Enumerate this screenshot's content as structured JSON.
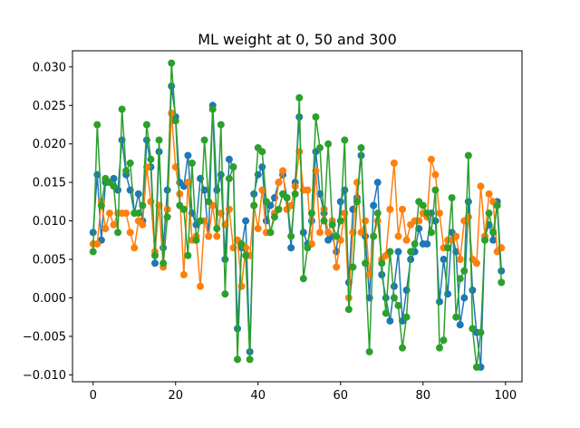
{
  "chart_data": {
    "type": "line",
    "title": "ML weight at 0, 50 and 300",
    "xlabel": "",
    "ylabel": "",
    "xlim": [
      -5,
      104
    ],
    "ylim": [
      -0.0109,
      0.0321
    ],
    "xticks": [
      0,
      20,
      40,
      60,
      80,
      100
    ],
    "yticks": [
      -0.01,
      -0.005,
      0.0,
      0.005,
      0.01,
      0.015,
      0.02,
      0.025,
      0.03
    ],
    "ytick_labels": [
      "−0.010",
      "−0.005",
      "0.000",
      "0.005",
      "0.010",
      "0.015",
      "0.020",
      "0.025",
      "0.030"
    ],
    "grid": false,
    "legend": false,
    "x": [
      0,
      1,
      2,
      3,
      4,
      5,
      6,
      7,
      8,
      9,
      10,
      11,
      12,
      13,
      14,
      15,
      16,
      17,
      18,
      19,
      20,
      21,
      22,
      23,
      24,
      25,
      26,
      27,
      28,
      29,
      30,
      31,
      32,
      33,
      34,
      35,
      36,
      37,
      38,
      39,
      40,
      41,
      42,
      43,
      44,
      45,
      46,
      47,
      48,
      49,
      50,
      51,
      52,
      53,
      54,
      55,
      56,
      57,
      58,
      59,
      60,
      61,
      62,
      63,
      64,
      65,
      66,
      67,
      68,
      69,
      70,
      71,
      72,
      73,
      74,
      75,
      76,
      77,
      78,
      79,
      80,
      81,
      82,
      83,
      84,
      85,
      86,
      87,
      88,
      89,
      90,
      91,
      92,
      93,
      94,
      95,
      96,
      97,
      98,
      99
    ],
    "series": [
      {
        "color": "#1f77b4",
        "values": [
          0.0085,
          0.016,
          0.0075,
          0.015,
          0.015,
          0.0155,
          0.014,
          0.0205,
          0.016,
          0.014,
          0.011,
          0.0135,
          0.01,
          0.0205,
          0.017,
          0.0045,
          0.019,
          0.0065,
          0.014,
          0.0275,
          0.0235,
          0.015,
          0.0145,
          0.0185,
          0.011,
          0.0095,
          0.0155,
          0.014,
          0.008,
          0.025,
          0.014,
          0.016,
          0.005,
          0.018,
          0.017,
          -0.004,
          0.0065,
          0.01,
          -0.007,
          0.0135,
          0.016,
          0.017,
          0.01,
          0.012,
          0.013,
          0.015,
          0.016,
          0.013,
          0.0065,
          0.015,
          0.0235,
          0.0085,
          0.007,
          0.01,
          0.019,
          0.0135,
          0.011,
          0.0075,
          0.008,
          0.006,
          0.0125,
          0.014,
          0.002,
          0.0115,
          0.013,
          0.0185,
          0.008,
          0.0,
          0.012,
          0.015,
          0.003,
          0.0,
          -0.003,
          0.0015,
          0.006,
          -0.003,
          0.001,
          0.005,
          0.006,
          0.009,
          0.007,
          0.007,
          0.011,
          0.01,
          -0.0005,
          0.005,
          0.0005,
          0.0085,
          0.006,
          -0.0035,
          0.0,
          0.0125,
          0.001,
          -0.0045,
          -0.009,
          0.008,
          0.0095,
          0.0075,
          0.0125,
          0.0035
        ]
      },
      {
        "color": "#ff7f0e",
        "values": [
          0.007,
          0.007,
          0.0125,
          0.009,
          0.011,
          0.0095,
          0.011,
          0.011,
          0.011,
          0.0085,
          0.0065,
          0.01,
          0.0095,
          0.017,
          0.0125,
          0.006,
          0.012,
          0.004,
          0.0115,
          0.024,
          0.017,
          0.0135,
          0.003,
          0.015,
          0.0075,
          0.008,
          0.0015,
          0.01,
          0.008,
          0.012,
          0.008,
          0.011,
          0.0095,
          0.0115,
          0.0065,
          0.0075,
          0.0015,
          0.0065,
          0.0055,
          0.012,
          0.009,
          0.014,
          0.0085,
          0.0085,
          0.011,
          0.015,
          0.0165,
          0.0115,
          0.012,
          0.0145,
          0.019,
          0.014,
          0.014,
          0.007,
          0.0165,
          0.0085,
          0.0115,
          0.0085,
          0.01,
          0.004,
          0.0075,
          0.011,
          0.0,
          0.0085,
          0.015,
          0.0085,
          0.01,
          0.003,
          0.008,
          0.01,
          0.005,
          0.0055,
          0.0115,
          0.0175,
          0.008,
          0.0115,
          0.0075,
          0.0095,
          0.01,
          0.01,
          0.011,
          0.0105,
          0.018,
          0.016,
          0.011,
          0.0065,
          0.0075,
          0.0075,
          0.008,
          0.005,
          0.01,
          0.0105,
          0.005,
          0.0045,
          0.0145,
          0.008,
          0.0135,
          0.0125,
          0.006,
          0.0065
        ]
      },
      {
        "color": "#2ca02c",
        "values": [
          0.006,
          0.0225,
          0.012,
          0.0155,
          0.015,
          0.0145,
          0.0085,
          0.0245,
          0.0165,
          0.0175,
          0.011,
          0.011,
          0.012,
          0.0225,
          0.018,
          0.0055,
          0.0205,
          0.0045,
          0.0105,
          0.0305,
          0.023,
          0.012,
          0.0115,
          0.0055,
          0.0175,
          0.0075,
          0.01,
          0.0205,
          0.0125,
          0.0245,
          0.009,
          0.0225,
          0.0005,
          0.0155,
          0.017,
          -0.008,
          0.007,
          0.0055,
          -0.008,
          0.012,
          0.0195,
          0.019,
          0.0125,
          0.0085,
          0.0105,
          0.0115,
          0.0135,
          0.013,
          0.008,
          0.0135,
          0.026,
          0.0025,
          0.0065,
          0.011,
          0.0235,
          0.0195,
          0.01,
          0.02,
          0.0095,
          0.008,
          0.01,
          0.0205,
          -0.0015,
          0.004,
          0.0125,
          0.0195,
          0.0045,
          -0.007,
          0.008,
          0.011,
          0.0045,
          -0.002,
          0.006,
          0.0,
          -0.001,
          -0.0065,
          -0.0025,
          0.006,
          0.007,
          0.0125,
          0.012,
          0.011,
          0.0085,
          0.014,
          -0.0065,
          -0.0055,
          0.0065,
          0.013,
          -0.0025,
          0.0025,
          0.0035,
          0.0185,
          -0.004,
          -0.009,
          -0.0045,
          0.0075,
          0.011,
          0.0085,
          0.012,
          0.002
        ]
      }
    ]
  }
}
